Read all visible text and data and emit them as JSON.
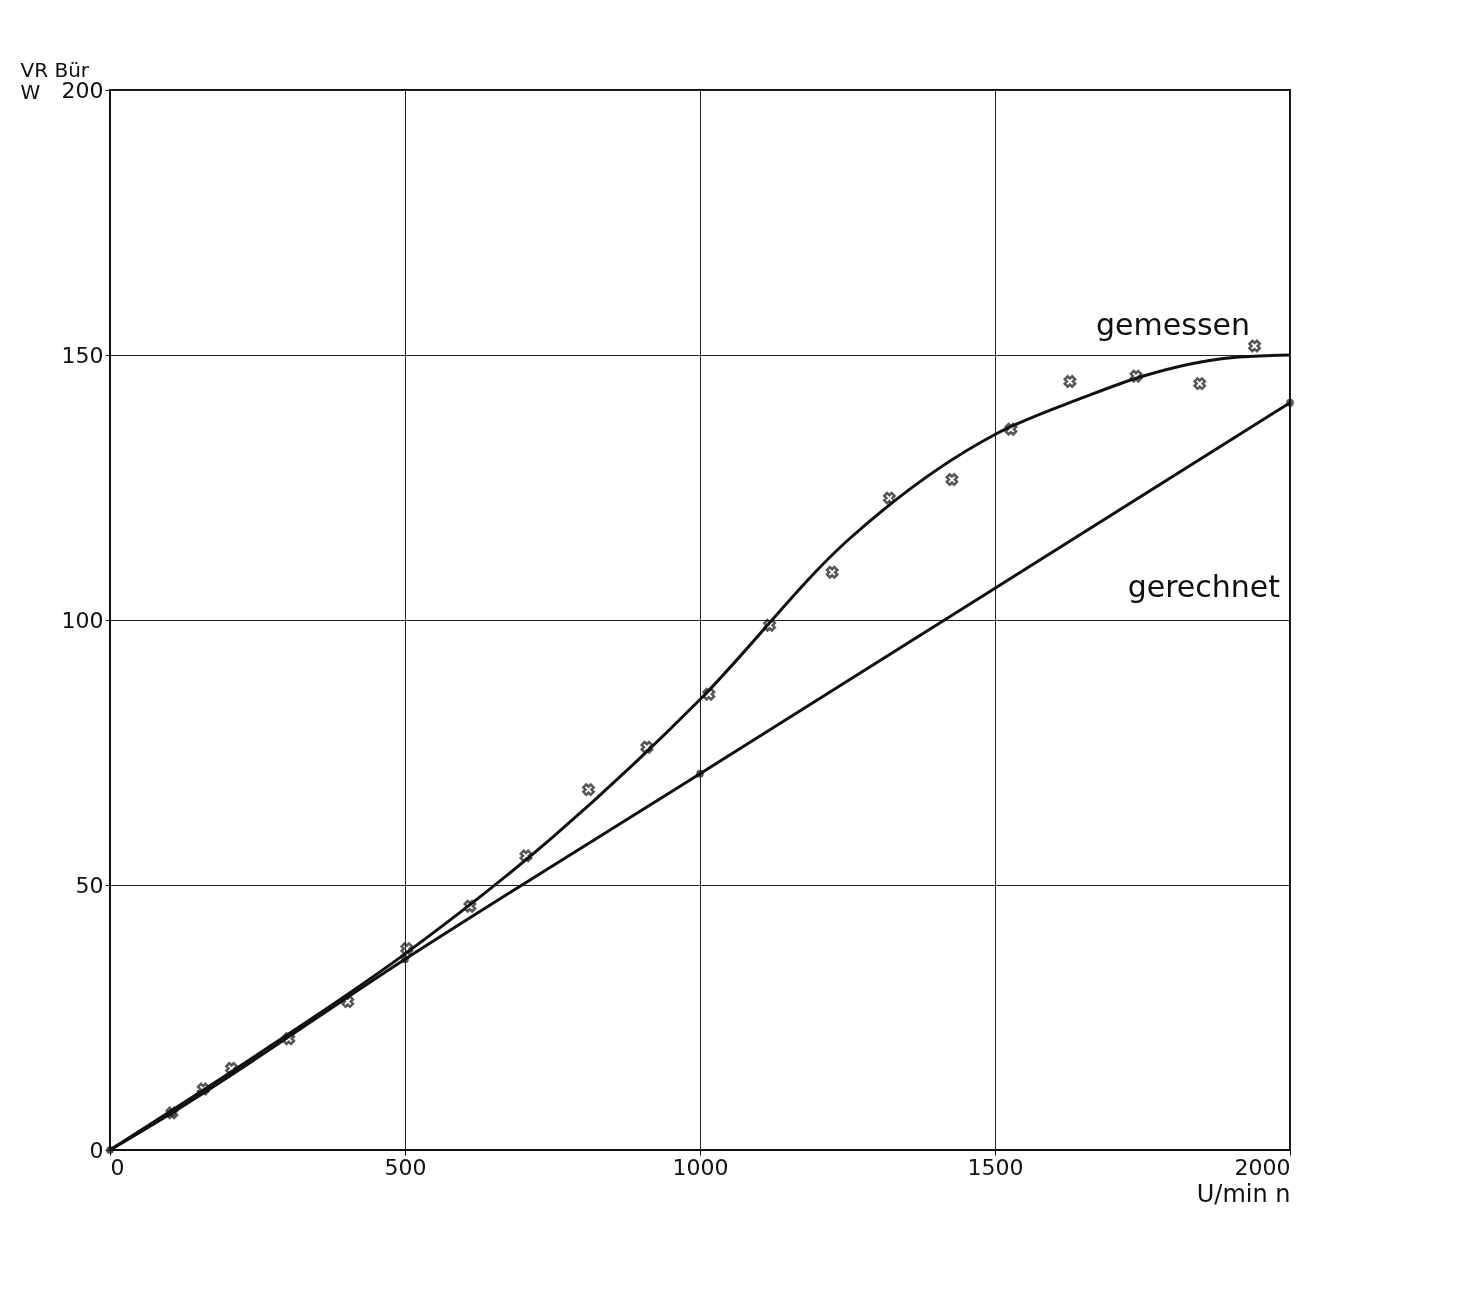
{
  "chart_data": {
    "type": "line",
    "ylabel": "VR Bür",
    "xlabel": "n",
    "annotations": [
      "W",
      "U/min"
    ],
    "xlim": [
      0,
      2000
    ],
    "xticks": [
      0,
      500,
      1000,
      1500,
      2000
    ],
    "ylim": [
      0,
      200
    ],
    "yticks": [
      0,
      50,
      100,
      150,
      200
    ],
    "grid": true,
    "series": [
      {
        "type": "scatter",
        "marker": "cross",
        "color": "#111111",
        "x": [
          105,
          158,
          206,
          303,
          403,
          503,
          610,
          705,
          811,
          910,
          1015,
          1118,
          1224,
          1321,
          1427,
          1527,
          1627,
          1739,
          1847,
          1940
        ],
        "values": [
          7,
          11.5,
          15.4,
          21,
          28,
          38,
          46,
          55.5,
          68,
          76,
          86,
          99,
          109,
          123,
          126.5,
          136,
          145,
          146,
          144.6,
          151.7
        ]
      },
      {
        "name": "gemessen",
        "color": "#111111",
        "marker": "none",
        "x": [
          0,
          250,
          500,
          750,
          1000,
          1250,
          1500,
          1650,
          1750,
          1900,
          2000
        ],
        "values": [
          0,
          18,
          37,
          59,
          85,
          115,
          135,
          142,
          146,
          149.5,
          150
        ]
      },
      {
        "name": "gerechnet",
        "color": "#111111",
        "marker": "circle",
        "x": [
          0,
          105,
          500,
          1000,
          2000
        ],
        "values": [
          0,
          7,
          36,
          71,
          141
        ]
      }
    ]
  }
}
